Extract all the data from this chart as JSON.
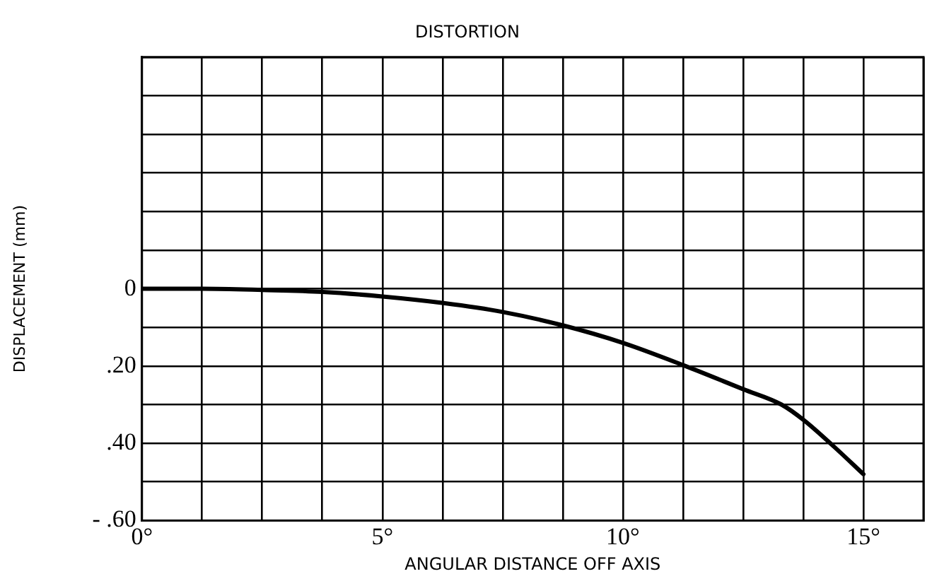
{
  "chart_data": {
    "type": "line",
    "title": "DISTORTION",
    "xlabel": "ANGULAR DISTANCE OFF AXIS",
    "ylabel": "DISPLACEMENT (mm)",
    "x": [
      0,
      1.25,
      2.5,
      3.76,
      5,
      6.27,
      7.5,
      8.76,
      10,
      11.3,
      12.5,
      13.3,
      13.76,
      14.4,
      15
    ],
    "series": [
      {
        "color": "#000000",
        "values": [
          0,
          0,
          -0.003,
          -0.008,
          -0.02,
          -0.037,
          -0.06,
          -0.095,
          -0.14,
          -0.2,
          -0.26,
          -0.3,
          -0.34,
          -0.41,
          -0.48
        ]
      }
    ],
    "xlim": [
      0,
      16.25
    ],
    "xticks": [
      {
        "value": 0,
        "label": "0°"
      },
      {
        "value": 1.25,
        "label": null
      },
      {
        "value": 2.5,
        "label": null
      },
      {
        "value": 3.75,
        "label": null
      },
      {
        "value": 5,
        "label": "5°"
      },
      {
        "value": 6.25,
        "label": null
      },
      {
        "value": 7.5,
        "label": null
      },
      {
        "value": 8.75,
        "label": null
      },
      {
        "value": 10,
        "label": "10°"
      },
      {
        "value": 11.25,
        "label": null
      },
      {
        "value": 12.5,
        "label": null
      },
      {
        "value": 13.75,
        "label": null
      },
      {
        "value": 15,
        "label": "15°"
      },
      {
        "value": 16.25,
        "label": null
      }
    ],
    "ylim": [
      -0.6,
      0.6
    ],
    "yticks": [
      {
        "value": -0.6,
        "label": "- .60"
      },
      {
        "value": -0.5,
        "label": null
      },
      {
        "value": -0.4,
        "label": ".40"
      },
      {
        "value": -0.3,
        "label": null
      },
      {
        "value": -0.2,
        "label": ".20"
      },
      {
        "value": -0.1,
        "label": null
      },
      0,
      {
        "value": 0.1,
        "label": null
      },
      {
        "value": 0.2,
        "label": null
      },
      {
        "value": 0.3,
        "label": null
      },
      {
        "value": 0.4,
        "label": null
      },
      {
        "value": 0.5,
        "label": null
      },
      {
        "value": 0.6,
        "label": null
      }
    ],
    "grid": true,
    "legend": false,
    "marker": "none",
    "line_style": "solid"
  }
}
